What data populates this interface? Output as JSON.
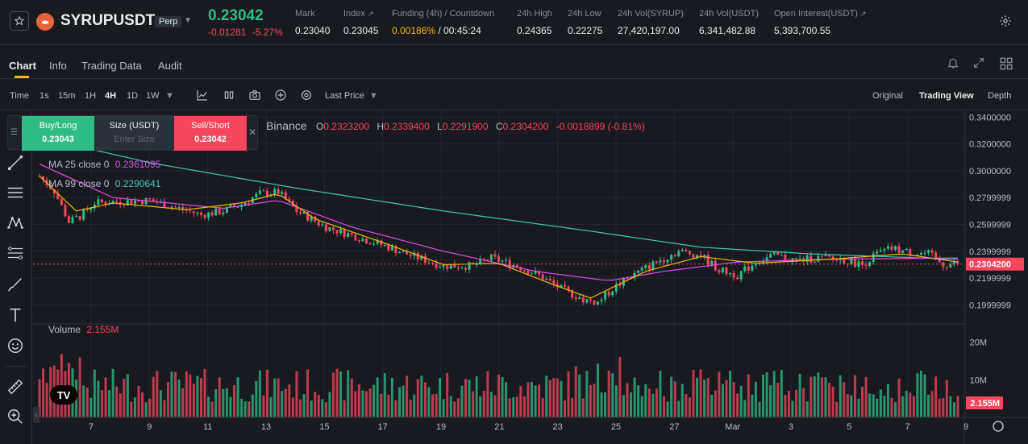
{
  "header": {
    "symbol": "SYRUPUSDT",
    "contract_type": "Perp",
    "last_price": "0.23042",
    "change_abs": "-0.01281",
    "change_pct": "-5.27%",
    "stats": [
      {
        "label": "Mark",
        "value": "0.23040"
      },
      {
        "label": "Index",
        "value": "0.23045"
      },
      {
        "label": "Funding (4h) / Countdown",
        "value_rate": "0.00186%",
        "value_countdown": "/ 00:45:24"
      },
      {
        "label": "24h High",
        "value": "0.24365"
      },
      {
        "label": "24h Low",
        "value": "0.22275"
      },
      {
        "label": "24h Vol(SYRUP)",
        "value": "27,420,197.00"
      },
      {
        "label": "24h Vol(USDT)",
        "value": "6,341,482.88"
      },
      {
        "label": "Open Interest(USDT)",
        "value": "5,393,700.55"
      }
    ]
  },
  "tabs": [
    "Chart",
    "Info",
    "Trading Data",
    "Audit"
  ],
  "toolbar": {
    "intervals": [
      "Time",
      "1s",
      "15m",
      "1H",
      "4H",
      "1D",
      "1W"
    ],
    "active_interval": "4H",
    "price_type": "Last Price",
    "views": [
      "Original",
      "Trading View",
      "Depth"
    ],
    "active_view": "Trading View"
  },
  "order_widget": {
    "buy_label": "Buy/Long",
    "buy_price": "0.23043",
    "size_label": "Size (USDT)",
    "size_placeholder": "Enter Size",
    "sell_label": "Sell/Short",
    "sell_price": "0.23042"
  },
  "ohlc": {
    "source": "Binance",
    "open_key": "O",
    "open": "0.2323200",
    "high_key": "H",
    "high": "0.2339400",
    "low_key": "L",
    "low": "0.2291900",
    "close_key": "C",
    "close": "0.2304200",
    "change": "-0.0018899 (-0.81%)"
  },
  "indicators": {
    "ma25_label": "MA 25 close 0",
    "ma25_value": "0.2361095",
    "ma99_label": "MA 99 close 0",
    "ma99_value": "0.2290641",
    "volume_label": "Volume",
    "volume_value": "2.155M"
  },
  "colors": {
    "up": "#2ebd85",
    "down": "#f6465d",
    "ma7": "#f0b90b",
    "ma25": "#e14ee8",
    "ma99": "#41c9b4",
    "accent": "#f0b90b"
  },
  "chart_data": {
    "type": "candlestick",
    "interval": "4H",
    "price_axis_ticks": [
      "0.3400000",
      "0.3200000",
      "0.3000000",
      "0.2799999",
      "0.2599999",
      "0.2399999",
      "0.2199999",
      "0.1999999"
    ],
    "current_price_tag": "0.2304200",
    "volume_axis_ticks": [
      "20M",
      "10M"
    ],
    "current_volume_tag": "2.155M",
    "x_ticks": [
      "7",
      "9",
      "11",
      "13",
      "15",
      "17",
      "19",
      "21",
      "23",
      "25",
      "27",
      "Mar",
      "3",
      "5",
      "7",
      "9"
    ],
    "price_range": [
      0.187,
      0.342
    ],
    "volume_range": [
      0,
      24000000
    ],
    "trend_path": [
      [
        0,
        0.296
      ],
      [
        4,
        0.285
      ],
      [
        8,
        0.262
      ],
      [
        11,
        0.266
      ],
      [
        15,
        0.276
      ],
      [
        22,
        0.277
      ],
      [
        30,
        0.278
      ],
      [
        38,
        0.272
      ],
      [
        44,
        0.267
      ],
      [
        50,
        0.27
      ],
      [
        55,
        0.275
      ],
      [
        60,
        0.283
      ],
      [
        65,
        0.284
      ],
      [
        70,
        0.27
      ],
      [
        78,
        0.258
      ],
      [
        86,
        0.251
      ],
      [
        94,
        0.244
      ],
      [
        102,
        0.236
      ],
      [
        110,
        0.229
      ],
      [
        118,
        0.229
      ],
      [
        123,
        0.235
      ],
      [
        130,
        0.229
      ],
      [
        136,
        0.222
      ],
      [
        142,
        0.212
      ],
      [
        148,
        0.204
      ],
      [
        152,
        0.202
      ],
      [
        156,
        0.212
      ],
      [
        162,
        0.223
      ],
      [
        168,
        0.232
      ],
      [
        174,
        0.24
      ],
      [
        180,
        0.237
      ],
      [
        185,
        0.226
      ],
      [
        190,
        0.222
      ],
      [
        195,
        0.232
      ],
      [
        200,
        0.237
      ],
      [
        206,
        0.233
      ],
      [
        212,
        0.235
      ],
      [
        218,
        0.234
      ],
      [
        224,
        0.23
      ],
      [
        228,
        0.238
      ],
      [
        232,
        0.242
      ],
      [
        237,
        0.239
      ],
      [
        242,
        0.238
      ],
      [
        246,
        0.23
      ],
      [
        250,
        0.231
      ]
    ],
    "ma7": [
      [
        0,
        0.296
      ],
      [
        10,
        0.27
      ],
      [
        20,
        0.276
      ],
      [
        40,
        0.271
      ],
      [
        55,
        0.276
      ],
      [
        65,
        0.283
      ],
      [
        75,
        0.264
      ],
      [
        95,
        0.245
      ],
      [
        110,
        0.23
      ],
      [
        125,
        0.231
      ],
      [
        140,
        0.215
      ],
      [
        150,
        0.205
      ],
      [
        165,
        0.225
      ],
      [
        180,
        0.236
      ],
      [
        195,
        0.231
      ],
      [
        215,
        0.234
      ],
      [
        235,
        0.238
      ],
      [
        250,
        0.232
      ]
    ],
    "ma25": [
      [
        0,
        0.305
      ],
      [
        20,
        0.28
      ],
      [
        50,
        0.272
      ],
      [
        65,
        0.278
      ],
      [
        85,
        0.258
      ],
      [
        110,
        0.24
      ],
      [
        135,
        0.225
      ],
      [
        155,
        0.218
      ],
      [
        170,
        0.225
      ],
      [
        190,
        0.232
      ],
      [
        215,
        0.234
      ],
      [
        250,
        0.235
      ]
    ],
    "ma99": [
      [
        0,
        0.325
      ],
      [
        30,
        0.306
      ],
      [
        70,
        0.287
      ],
      [
        110,
        0.27
      ],
      [
        150,
        0.255
      ],
      [
        180,
        0.243
      ],
      [
        210,
        0.238
      ],
      [
        250,
        0.234
      ]
    ]
  }
}
